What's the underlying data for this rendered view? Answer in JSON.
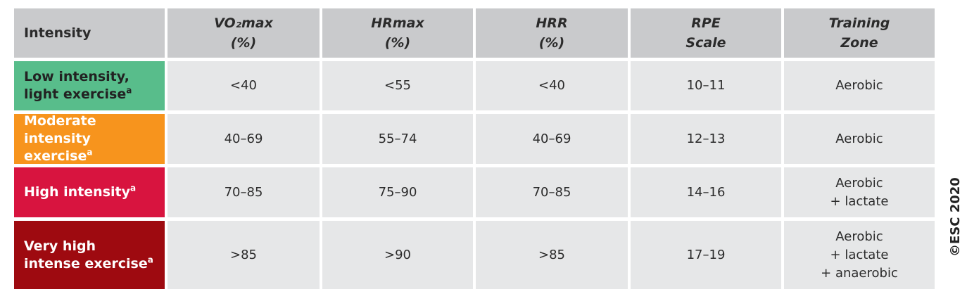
{
  "table": {
    "header": [
      {
        "lines": [
          "Intensity"
        ]
      },
      {
        "lines": [
          "VO₂max",
          "(%)"
        ]
      },
      {
        "lines": [
          "HRmax",
          "(%)"
        ]
      },
      {
        "lines": [
          "HRR",
          "(%)"
        ]
      },
      {
        "lines": [
          "RPE",
          "Scale"
        ]
      },
      {
        "lines": [
          "Training",
          "Zone"
        ]
      }
    ],
    "rows": [
      {
        "label": "Low intensity, light exercise",
        "note": "a",
        "color": "#58bd8b",
        "cells": [
          [
            "<40"
          ],
          [
            "<55"
          ],
          [
            "<40"
          ],
          [
            "10–11"
          ],
          [
            "Aerobic"
          ]
        ]
      },
      {
        "label": "Moderate intensity exercise",
        "note": "a",
        "color": "#f7941d",
        "cells": [
          [
            "40–69"
          ],
          [
            "55–74"
          ],
          [
            "40–69"
          ],
          [
            "12–13"
          ],
          [
            "Aerobic"
          ]
        ]
      },
      {
        "label": "High intensity",
        "note": "a",
        "color": "#d8143f",
        "cells": [
          [
            "70–85"
          ],
          [
            "75–90"
          ],
          [
            "70–85"
          ],
          [
            "14–16"
          ],
          [
            "Aerobic",
            "+ lactate"
          ]
        ]
      },
      {
        "label": "Very high intense exercise",
        "note": "a",
        "color": "#9e0a10",
        "cells": [
          [
            ">85"
          ],
          [
            ">90"
          ],
          [
            ">85"
          ],
          [
            "17–19"
          ],
          [
            "Aerobic",
            "+ lactate",
            "+ anaerobic"
          ]
        ]
      }
    ]
  },
  "copyright": "©ESC 2020"
}
